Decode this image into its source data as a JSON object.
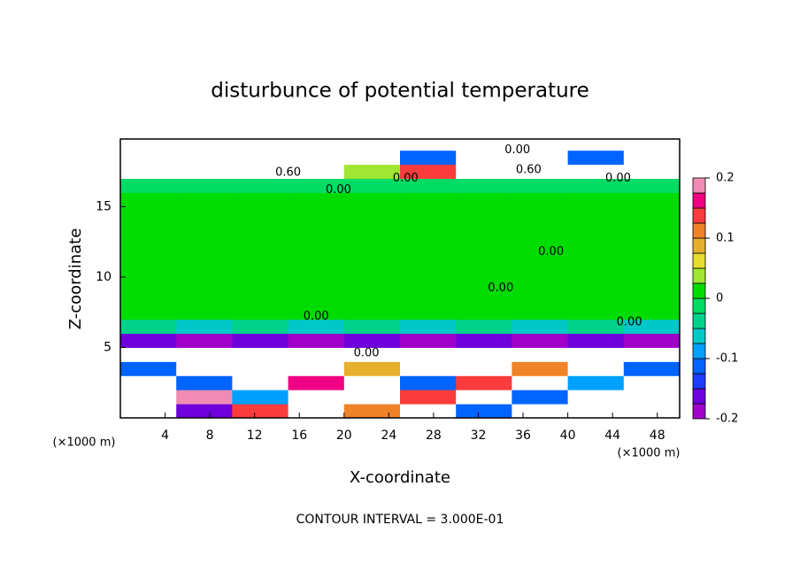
{
  "chart_data": {
    "type": "contour",
    "title": "disturbunce of potential temperature",
    "x_label": "X-coordinate",
    "y_label": "Z-coordinate",
    "x_unit": "(×1000 m)",
    "annotation": "CONTOUR INTERVAL = 3.000E-01",
    "xlim": [
      0,
      50
    ],
    "ylim": [
      0,
      19.8
    ],
    "xticks": [
      4,
      8,
      12,
      16,
      20,
      24,
      28,
      32,
      36,
      40,
      44,
      48
    ],
    "yticks": [
      5,
      10,
      15
    ],
    "grid": false,
    "x": [
      2.5,
      7.5,
      12.5,
      17.5,
      22.5,
      27.5,
      32.5,
      37.5,
      42.5,
      47.5
    ],
    "z": [
      0.5,
      1.5,
      2.5,
      3.5,
      4.5,
      5.5,
      6.5,
      7.5,
      8.5,
      9.5,
      10.5,
      11.5,
      12.5,
      13.5,
      14.5,
      15.5,
      16.5,
      17.5,
      18.5,
      19.5
    ],
    "values": [
      [
        0.3,
        -0.15,
        0.15,
        -0.3,
        0.12,
        0.3,
        -0.12,
        0.3,
        -0.3,
        0.3
      ],
      [
        -0.3,
        0.18,
        -0.08,
        0.3,
        -0.3,
        0.15,
        0.3,
        -0.1,
        0.3,
        -0.3
      ],
      [
        0.3,
        -0.1,
        0.3,
        0.16,
        0.3,
        -0.12,
        0.14,
        0.3,
        -0.08,
        0.3
      ],
      [
        -0.12,
        0.3,
        -0.3,
        0.3,
        0.1,
        0.3,
        -0.3,
        0.12,
        0.3,
        -0.1
      ],
      [
        0.3,
        -0.3,
        0.3,
        -0.3,
        0.3,
        0.3,
        -0.3,
        0.3,
        -0.3,
        0.3
      ],
      [
        -0.17,
        -0.18,
        -0.17,
        -0.18,
        -0.17,
        -0.18,
        -0.17,
        -0.18,
        -0.17,
        -0.18
      ],
      [
        -0.04,
        -0.05,
        -0.04,
        -0.05,
        -0.04,
        -0.05,
        -0.04,
        -0.05,
        -0.04,
        -0.05
      ],
      [
        0.01,
        0.01,
        0.01,
        0.01,
        0.01,
        0.01,
        0.01,
        0.01,
        0.01,
        0.01
      ],
      [
        0.01,
        0.01,
        0.01,
        0.01,
        0.01,
        0.01,
        0.01,
        0.01,
        0.01,
        0.01
      ],
      [
        0.01,
        0.01,
        0.01,
        0.01,
        0.01,
        0.01,
        0.01,
        0.01,
        0.01,
        0.01
      ],
      [
        0.01,
        0.01,
        0.01,
        0.01,
        0.01,
        0.01,
        0.01,
        0.01,
        0.01,
        0.01
      ],
      [
        0.01,
        0.01,
        0.01,
        0.01,
        0.01,
        0.01,
        0.01,
        0.01,
        0.01,
        0.01
      ],
      [
        0.01,
        0.01,
        0.01,
        0.01,
        0.01,
        0.01,
        0.01,
        0.01,
        0.01,
        0.01
      ],
      [
        0.01,
        0.01,
        0.01,
        0.01,
        0.01,
        0.01,
        0.01,
        0.01,
        0.01,
        0.01
      ],
      [
        0.01,
        0.01,
        0.01,
        0.01,
        0.01,
        0.01,
        0.01,
        0.01,
        0.01,
        0.01
      ],
      [
        0.01,
        0.01,
        0.01,
        0.01,
        0.01,
        0.01,
        0.01,
        0.01,
        0.01,
        0.01
      ],
      [
        -0.02,
        -0.02,
        -0.02,
        -0.02,
        -0.02,
        -0.02,
        -0.02,
        -0.02,
        -0.02,
        -0.02
      ],
      [
        0.3,
        0.3,
        0.3,
        0.3,
        0.05,
        0.15,
        0.3,
        0.3,
        0.3,
        0.3
      ],
      [
        0.3,
        0.3,
        0.3,
        0.3,
        0.3,
        -0.1,
        0.3,
        0.3,
        -0.1,
        0.3
      ],
      [
        0.3,
        0.3,
        0.3,
        0.3,
        0.3,
        0.3,
        0.3,
        0.3,
        0.3,
        0.3
      ]
    ],
    "contour_labels": [
      {
        "text": "0.60",
        "x": 15,
        "z": 17.4
      },
      {
        "text": "0.00",
        "x": 19.5,
        "z": 16.2
      },
      {
        "text": "0.00",
        "x": 25.5,
        "z": 17
      },
      {
        "text": "0.60",
        "x": 36.5,
        "z": 17.6
      },
      {
        "text": "0.00",
        "x": 35.5,
        "z": 19
      },
      {
        "text": "0.00",
        "x": 44.5,
        "z": 17
      },
      {
        "text": "0.00",
        "x": 38.5,
        "z": 11.8
      },
      {
        "text": "0.00",
        "x": 34,
        "z": 9.2
      },
      {
        "text": "0.00",
        "x": 17.5,
        "z": 7.2
      },
      {
        "text": "0.00",
        "x": 45.5,
        "z": 6.8
      },
      {
        "text": "0.00",
        "x": 22,
        "z": 4.6
      }
    ],
    "colorbar": {
      "levels": [
        -0.2,
        -0.175,
        -0.15,
        -0.125,
        -0.1,
        -0.075,
        -0.05,
        -0.025,
        0,
        0.025,
        0.05,
        0.075,
        0.1,
        0.125,
        0.15,
        0.175,
        0.2
      ],
      "colors": [
        "#a000c8",
        "#6e00dc",
        "#1e3cff",
        "#0064ff",
        "#00a0ff",
        "#00c8c8",
        "#00d28c",
        "#00dc64",
        "#00dc00",
        "#a0e632",
        "#e6dc32",
        "#e6af2d",
        "#f08228",
        "#fa3c3c",
        "#f00082",
        "#f08cb4"
      ],
      "ticks": [
        0.2,
        0.1,
        0,
        -0.1,
        -0.2
      ],
      "out_of_range_color": "#ffffff"
    }
  }
}
